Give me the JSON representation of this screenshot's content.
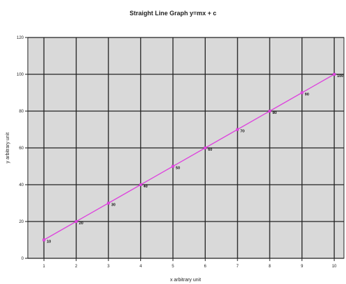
{
  "chart_data": {
    "type": "line",
    "title": "Straight Line Graph y=mx + c",
    "xlabel": "x arbitrary unit",
    "ylabel": "y arbitrary unit",
    "xlim": [
      0.5,
      10.3
    ],
    "ylim": [
      0,
      120
    ],
    "x_ticks": [
      1,
      2,
      3,
      4,
      5,
      6,
      7,
      8,
      9,
      10
    ],
    "y_ticks": [
      0,
      20,
      40,
      60,
      80,
      100,
      120
    ],
    "grid": true,
    "series": [
      {
        "color": "#dd44dd",
        "x": [
          1,
          2,
          3,
          4,
          5,
          6,
          7,
          8,
          9,
          10
        ],
        "y": [
          10,
          20,
          30,
          40,
          50,
          60,
          70,
          80,
          90,
          100
        ],
        "labels": [
          "10",
          "20",
          "30",
          "40",
          "50",
          "60",
          "70",
          "80",
          "90",
          "100"
        ]
      }
    ],
    "colors": {
      "plot_background": "#d9d9d9",
      "grid": "#222222",
      "line": "#dd44dd"
    }
  }
}
